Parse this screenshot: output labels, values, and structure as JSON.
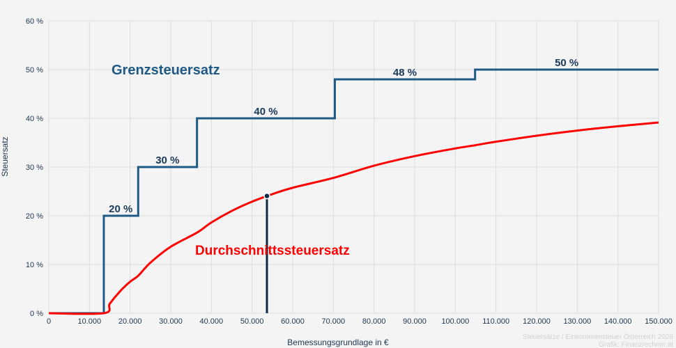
{
  "chart_data": {
    "type": "line",
    "title": "",
    "xlabel": "Bemessungsgrundlage in €",
    "ylabel": "Steuersatz",
    "xlim": [
      0,
      150000
    ],
    "ylim": [
      0,
      60
    ],
    "grid": true,
    "x_ticks": [
      0,
      10000,
      20000,
      30000,
      40000,
      50000,
      60000,
      70000,
      80000,
      90000,
      100000,
      110000,
      120000,
      130000,
      140000,
      150000
    ],
    "x_tick_labels": [
      "0",
      "10.000",
      "20.000",
      "30.000",
      "40.000",
      "50.000",
      "60.000",
      "70.000",
      "80.000",
      "90.000",
      "100.000",
      "110.000",
      "120.000",
      "130.000",
      "140.000",
      "150.000"
    ],
    "y_ticks": [
      0,
      10,
      20,
      30,
      40,
      50,
      60
    ],
    "y_tick_labels": [
      "0 %",
      "10 %",
      "20 %",
      "30 %",
      "40 %",
      "50 %",
      "60 %"
    ],
    "series": [
      {
        "name": "Grenzsteuersatz",
        "color": "#1f5a85",
        "kind": "step",
        "x": [
          0,
          13539,
          21992,
          36458,
          70365,
          104859,
          150000
        ],
        "y": [
          0,
          20,
          30,
          40,
          48,
          50,
          50
        ],
        "step_labels": [
          {
            "x": 17700,
            "y": 20,
            "text": "20 %"
          },
          {
            "x": 29200,
            "y": 30,
            "text": "30 %"
          },
          {
            "x": 53400,
            "y": 40,
            "text": "40 %"
          },
          {
            "x": 87600,
            "y": 48,
            "text": "48 %"
          },
          {
            "x": 127400,
            "y": 50,
            "text": "50 %"
          }
        ]
      },
      {
        "name": "Durchschnittssteuersatz",
        "color": "#ff0000",
        "kind": "line",
        "x": [
          0,
          13539,
          15000,
          17500,
          20000,
          21992,
          25000,
          30000,
          36458,
          40000,
          45000,
          50000,
          55000,
          60000,
          70365,
          80000,
          90000,
          100000,
          104859,
          110000,
          120000,
          130000,
          140000,
          150000
        ],
        "y": [
          0,
          0,
          1.95,
          4.47,
          6.46,
          7.69,
          10.37,
          13.64,
          16.54,
          18.62,
          20.99,
          22.89,
          24.44,
          25.75,
          27.85,
          30.27,
          32.24,
          33.82,
          34.47,
          35.2,
          36.43,
          37.48,
          38.37,
          39.15
        ]
      }
    ],
    "marker": {
      "x": 53660,
      "y": 24.06,
      "color": "#0f2a44"
    },
    "annotations": {
      "grenz": "Grenzsteuersatz",
      "durchschnitt": "Durchschnittssteuersatz"
    },
    "credits": [
      "Steuersätze / Einkommensteuer Österreich 2026",
      "Grafik: Finanzrechner.at"
    ]
  }
}
